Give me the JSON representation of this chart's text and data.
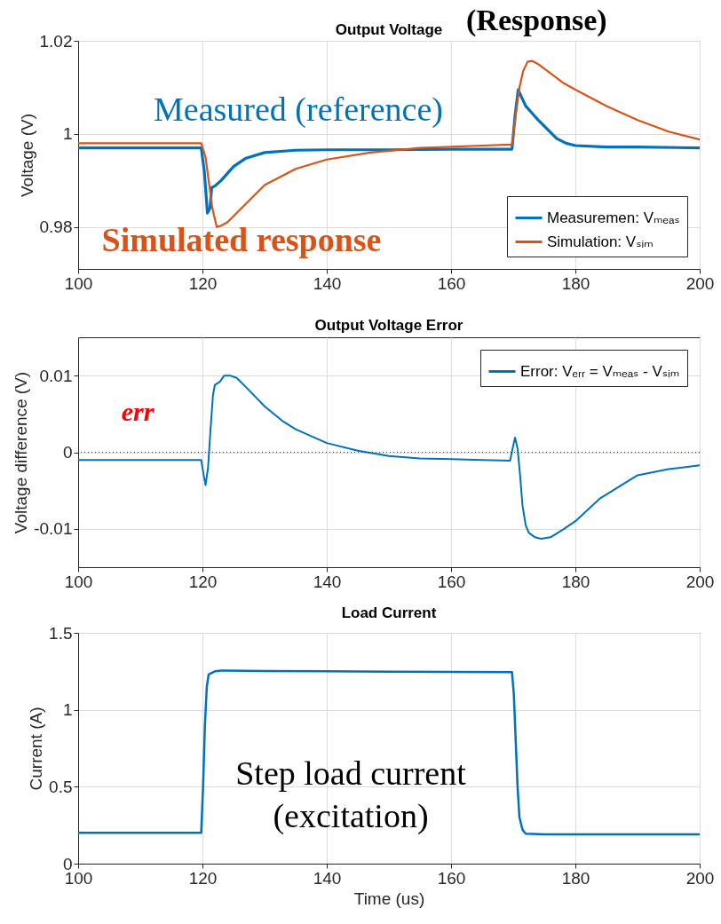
{
  "chart_data": [
    {
      "type": "line",
      "title": "Output Voltage",
      "ylabel": "Voltage (V)",
      "xlim": [
        100,
        200
      ],
      "xticks": [
        100,
        120,
        140,
        160,
        180,
        200
      ],
      "ylim": [
        0.971,
        1.02
      ],
      "yticks": [
        0.98,
        1,
        1.02
      ],
      "grid": true,
      "legend": "bottom right",
      "annotations": [
        "(Response)",
        "Measured (reference)",
        "Simulated response"
      ],
      "series": [
        {
          "name": "Measuremen: Vₘₑₐₛ",
          "color": "#0072bd",
          "x": [
            100,
            110,
            119.8,
            120.3,
            120.8,
            121.2,
            121.5,
            122,
            123,
            125,
            127,
            130,
            135,
            140,
            150,
            160,
            169.8,
            170.3,
            170.8,
            171.3,
            172,
            173,
            174,
            175.5,
            177,
            178.5,
            180,
            185,
            190,
            200
          ],
          "values": [
            0.997,
            0.997,
            0.997,
            0.992,
            0.983,
            0.984,
            0.9885,
            0.9888,
            0.99,
            0.993,
            0.9948,
            0.996,
            0.9965,
            0.9966,
            0.9966,
            0.9967,
            0.9967,
            1.004,
            1.0095,
            1.008,
            1.006,
            1.0045,
            1.003,
            1.001,
            0.999,
            0.998,
            0.9975,
            0.9972,
            0.9972,
            0.997
          ]
        },
        {
          "name": "Simulation: Vₛᵢₘ",
          "color": "#d95319",
          "x": [
            100,
            110,
            119.8,
            120.5,
            121,
            121.6,
            122.3,
            123,
            124,
            125.5,
            127,
            130,
            135,
            140,
            147,
            155,
            165,
            169.8,
            170.4,
            171,
            171.6,
            172.3,
            173,
            174,
            176,
            178,
            180,
            185,
            190,
            195,
            200
          ],
          "values": [
            0.998,
            0.998,
            0.998,
            0.995,
            0.99,
            0.984,
            0.98,
            0.9803,
            0.981,
            0.983,
            0.985,
            0.989,
            0.9925,
            0.9945,
            0.996,
            0.997,
            0.9975,
            0.9977,
            1.004,
            1.01,
            1.0135,
            1.0155,
            1.0157,
            1.015,
            1.013,
            1.011,
            1.0095,
            1.006,
            1.003,
            1.0005,
            0.9988
          ]
        }
      ]
    },
    {
      "type": "line",
      "title": "Output Voltage Error",
      "ylabel": "Voltage difference (V)",
      "xlim": [
        100,
        200
      ],
      "xticks": [
        100,
        120,
        140,
        160,
        180,
        200
      ],
      "ylim": [
        -0.015,
        0.015
      ],
      "yticks": [
        -0.01,
        0,
        0.01
      ],
      "grid": true,
      "legend": "top right",
      "annotations": [
        "err"
      ],
      "ref_lines": [
        {
          "axis": "y",
          "value": 0,
          "color": "#000000",
          "line_style": "dotted"
        }
      ],
      "series": [
        {
          "name": "Error: Vₑᵣᵣ = Vₘₑₐₛ - Vₛᵢₘ",
          "color": "#0072bd",
          "x": [
            100,
            110,
            119.8,
            120.2,
            120.5,
            120.9,
            121.3,
            121.7,
            122,
            122.8,
            123.5,
            124.5,
            125.5,
            127,
            130,
            133,
            135,
            140,
            145,
            150,
            155,
            160,
            165,
            169.5,
            169.9,
            170.3,
            170.7,
            171.1,
            171.5,
            172,
            172.5,
            173.5,
            174.5,
            176,
            178,
            180,
            182,
            184,
            187,
            190,
            195,
            200
          ],
          "values": [
            -0.001,
            -0.001,
            -0.001,
            -0.003,
            -0.0043,
            -0.002,
            0.003,
            0.0075,
            0.0088,
            0.0092,
            0.01,
            0.01,
            0.0097,
            0.0085,
            0.006,
            0.004,
            0.003,
            0.0012,
            0.0002,
            -0.0005,
            -0.0008,
            -0.0009,
            -0.001,
            -0.0011,
            0.0005,
            0.0019,
            0.0005,
            -0.003,
            -0.007,
            -0.0095,
            -0.0105,
            -0.0111,
            -0.0113,
            -0.0111,
            -0.0101,
            -0.009,
            -0.0075,
            -0.006,
            -0.0045,
            -0.003,
            -0.0022,
            -0.0017
          ]
        }
      ]
    },
    {
      "type": "line",
      "title": "Load Current",
      "xlabel": "Time (us)",
      "ylabel": "Current (A)",
      "xlim": [
        100,
        200
      ],
      "xticks": [
        100,
        120,
        140,
        160,
        180,
        200
      ],
      "ylim": [
        0,
        1.5
      ],
      "yticks": [
        0,
        0.5,
        1,
        1.5
      ],
      "grid": true,
      "annotations": [
        "Step load current",
        "(excitation)"
      ],
      "series": [
        {
          "color": "#0072bd",
          "x": [
            100,
            110,
            119.8,
            120.1,
            120.4,
            120.7,
            121,
            122,
            123,
            130,
            140,
            150,
            160,
            169.8,
            170.1,
            170.4,
            170.7,
            171,
            171.5,
            172,
            175,
            180,
            190,
            200
          ],
          "values": [
            0.2,
            0.2,
            0.2,
            0.5,
            0.9,
            1.15,
            1.23,
            1.25,
            1.255,
            1.252,
            1.25,
            1.248,
            1.246,
            1.245,
            1.1,
            0.8,
            0.5,
            0.3,
            0.22,
            0.195,
            0.19,
            0.19,
            0.19,
            0.19
          ]
        }
      ]
    }
  ]
}
